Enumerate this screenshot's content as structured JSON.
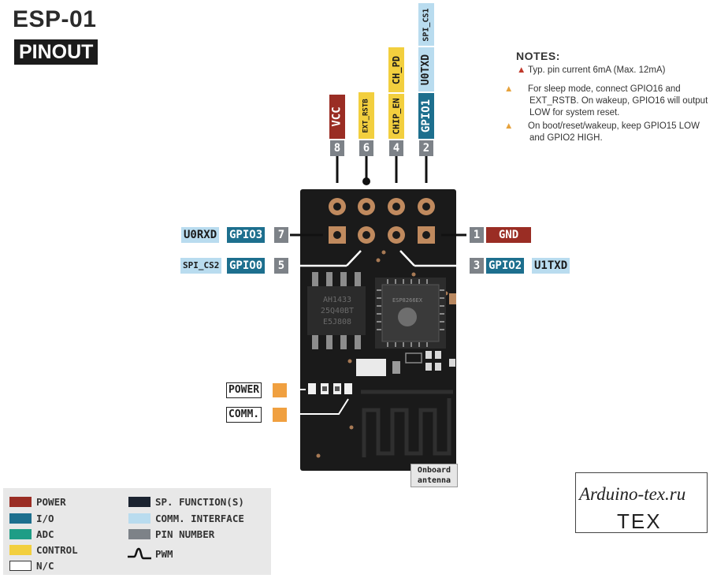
{
  "title": "ESP-01",
  "subtitle": "PINOUT",
  "top_pins": [
    {
      "num": "8",
      "label": "VCC"
    },
    {
      "num": "6",
      "label": "EXT_RSTB"
    },
    {
      "num": "4",
      "label": "CHIP_EN",
      "label2": "CH_PD"
    },
    {
      "num": "2",
      "label": "GPIO1",
      "label2": "U0TXD",
      "label3": "SPI_CS1"
    }
  ],
  "left_pins": [
    {
      "num": "7",
      "gpio": "GPIO3",
      "comm": "U0RXD"
    },
    {
      "num": "5",
      "gpio": "GPIO0",
      "comm": "SPI_CS2"
    }
  ],
  "right_pins": [
    {
      "num": "1",
      "label": "GND"
    },
    {
      "num": "3",
      "gpio": "GPIO2",
      "comm": "U1TXD"
    }
  ],
  "notes": {
    "title": "NOTES:",
    "items": [
      {
        "level": "danger",
        "text": "Typ. pin current 6mA (Max. 12mA)"
      },
      {
        "level": "warning",
        "text": "For sleep mode, connect GPIO16 and EXT_RSTB. On wakeup, GPIO16 will output LOW for system reset."
      },
      {
        "level": "warning",
        "text": "On boot/reset/wakeup, keep GPIO15 LOW and GPIO2 HIGH."
      }
    ]
  },
  "board": {
    "flash_chip": [
      "AH1433",
      "25Q40BT",
      "E5J808"
    ],
    "soc_chip": "ESP8266EX",
    "led_labels": [
      "POWER",
      "COMM."
    ],
    "antenna_label": [
      "Onboard",
      "antenna"
    ]
  },
  "legend": [
    {
      "label": "POWER",
      "color": "#9a2d24"
    },
    {
      "label": "I/O",
      "color": "#1d6f8e"
    },
    {
      "label": "ADC",
      "color": "#1e9d86"
    },
    {
      "label": "CONTROL",
      "color": "#f2cf3e"
    },
    {
      "label": "N/C",
      "color": "#ffffff"
    },
    {
      "label": "SP. FUNCTION(S)",
      "color": "#1b2330"
    },
    {
      "label": "COMM. INTERFACE",
      "color": "#b9dcef"
    },
    {
      "label": "PIN NUMBER",
      "color": "#7d8288"
    },
    {
      "label": "PWM",
      "icon": "pwm-wave-icon"
    }
  ],
  "watermark": {
    "url": "Arduino-tex.ru",
    "brand": "TEX"
  }
}
